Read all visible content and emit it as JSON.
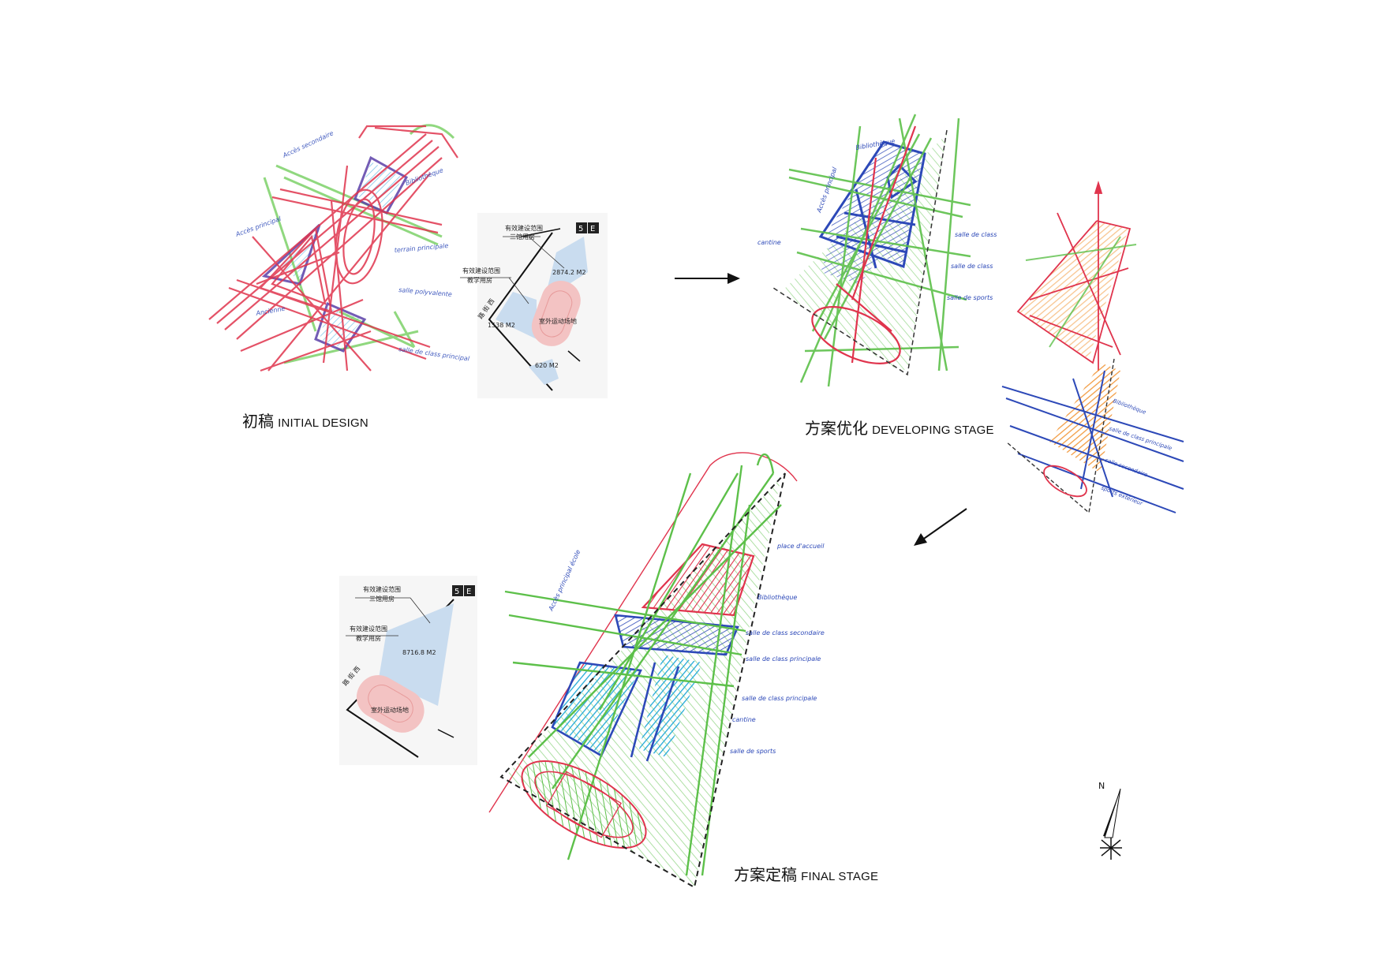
{
  "stages": {
    "initial": {
      "zh": "初稿",
      "en": "INITIAL DESIGN"
    },
    "developing": {
      "zh": "方案优化",
      "en": "DEVELOPING STAGE"
    },
    "final": {
      "zh": "方案定稿",
      "en": "FINAL STAGE"
    }
  },
  "plan1": {
    "zone_top_title": "有效建设范围",
    "zone_top_sub": "三馆用房",
    "zone_top_area": "2874.2 M2",
    "zone_left_title": "有效建设范围",
    "zone_left_sub": "教学用房",
    "zone_left_area": "1538 M2",
    "track_label": "室外运动场地",
    "zone_bottom_area": "620 M2",
    "road_label": "路 街 西"
  },
  "plan2": {
    "zone_top_title": "有效建设范围",
    "zone_top_sub": "三馆用房",
    "zone_mid_title": "有效建设范围",
    "zone_mid_sub": "教学用房",
    "zone_mid_area": "8716.8 M2",
    "track_label": "室外运动场地",
    "road_label": "路 街 西"
  },
  "sketch_initial_notes": [
    "Accès secondaire",
    "Bibliothèque",
    "Accès principal",
    "terrain principale",
    "salle polyvalente",
    "Ancienne",
    "salle de class principal"
  ],
  "sketch_dev_notes": [
    "Bibliothèque",
    "Accès principal",
    "salle de class",
    "salle de class",
    "salle de sports",
    "cantine"
  ],
  "sketch_side_notes": [
    "Bibliothèque",
    "salle de class principale",
    "salle secondaire",
    "sports extérieur"
  ],
  "sketch_final_notes": [
    "Accès principal école",
    "place d'accueil",
    "Bibliothèque",
    "salle de class secondaire",
    "salle de class principale",
    "salle de class principale",
    "cantine",
    "salle de sports"
  ],
  "compass": {
    "label": "N"
  },
  "colors": {
    "red": "#e0344d",
    "green": "#5dc04a",
    "blue": "#2d49b8",
    "cyan": "#23a9d8",
    "orange": "#f08b22",
    "pink": "#f3c3c3",
    "lightblue": "#c9dcef"
  }
}
